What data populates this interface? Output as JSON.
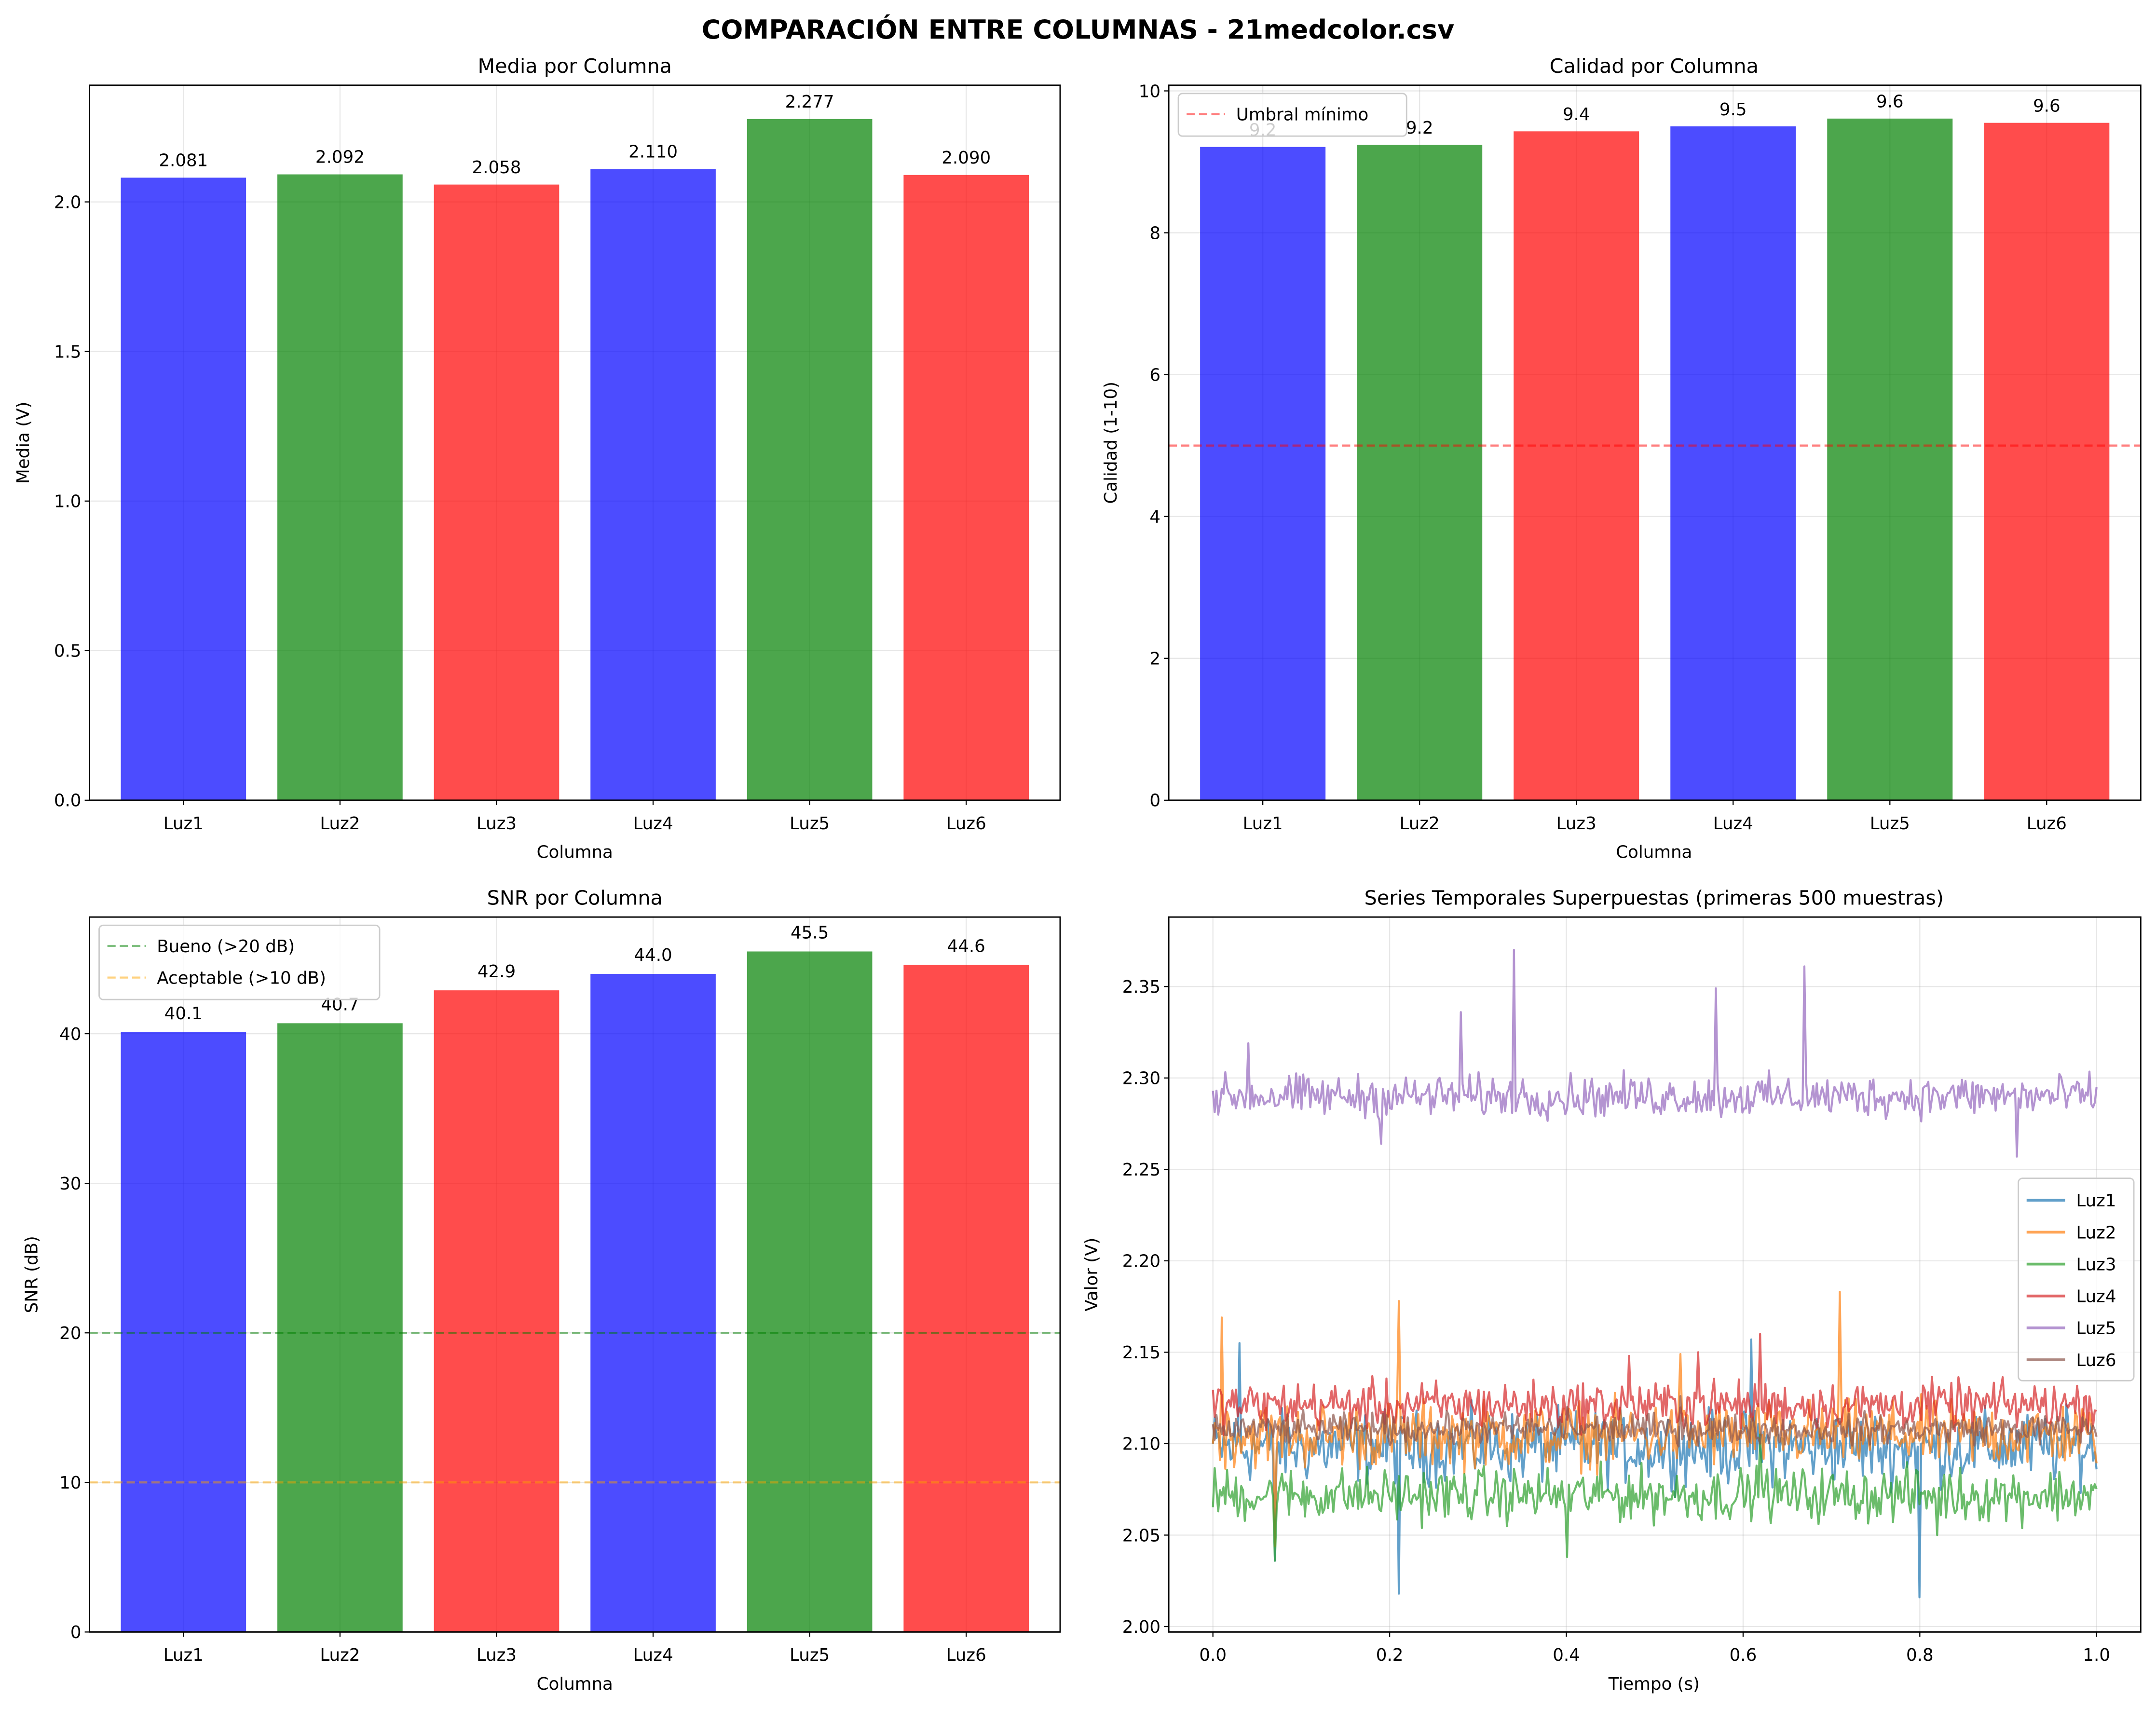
{
  "figure_title": "COMPARACIÓN ENTRE COLUMNAS - 21medcolor.csv",
  "colors": {
    "blue": "#0000ff",
    "green": "#008000",
    "red": "#ff0000",
    "threshold_red": "#ff0000",
    "good_green": "#008000",
    "ok_orange": "#ffa500"
  },
  "chart_data": [
    {
      "type": "bar",
      "title": "Media por Columna",
      "xlabel": "Columna",
      "ylabel": "Media (V)",
      "categories": [
        "Luz1",
        "Luz2",
        "Luz3",
        "Luz4",
        "Luz5",
        "Luz6"
      ],
      "values": [
        2.081,
        2.092,
        2.058,
        2.11,
        2.277,
        2.09
      ],
      "labels": [
        "2.081",
        "2.092",
        "2.058",
        "2.110",
        "2.277",
        "2.090"
      ],
      "bar_colors": [
        "blue",
        "green",
        "red",
        "blue",
        "green",
        "red"
      ],
      "ylim": [
        0,
        2.39
      ],
      "yticks": [
        0.0,
        0.5,
        1.0,
        1.5,
        2.0
      ],
      "ytick_labels": [
        "0.0",
        "0.5",
        "1.0",
        "1.5",
        "2.0"
      ],
      "grid": true
    },
    {
      "type": "bar",
      "title": "Calidad por Columna",
      "xlabel": "Columna",
      "ylabel": "Calidad (1-10)",
      "categories": [
        "Luz1",
        "Luz2",
        "Luz3",
        "Luz4",
        "Luz5",
        "Luz6"
      ],
      "values": [
        9.21,
        9.24,
        9.43,
        9.5,
        9.61,
        9.55
      ],
      "labels": [
        "9.2",
        "9.2",
        "9.4",
        "9.5",
        "9.6",
        "9.6"
      ],
      "bar_colors": [
        "blue",
        "green",
        "red",
        "blue",
        "green",
        "red"
      ],
      "ylim": [
        0,
        10.08
      ],
      "yticks": [
        0,
        2,
        4,
        6,
        8,
        10
      ],
      "ytick_labels": [
        "0",
        "2",
        "4",
        "6",
        "8",
        "10"
      ],
      "hlines": [
        {
          "y": 5,
          "color": "threshold_red",
          "label": "Umbral mínimo"
        }
      ],
      "legend": "top-left",
      "grid": true
    },
    {
      "type": "bar",
      "title": "SNR por Columna",
      "xlabel": "Columna",
      "ylabel": "SNR (dB)",
      "categories": [
        "Luz1",
        "Luz2",
        "Luz3",
        "Luz4",
        "Luz5",
        "Luz6"
      ],
      "values": [
        40.1,
        40.7,
        42.9,
        44.0,
        45.5,
        44.6
      ],
      "labels": [
        "40.1",
        "40.7",
        "42.9",
        "44.0",
        "45.5",
        "44.6"
      ],
      "bar_colors": [
        "blue",
        "green",
        "red",
        "blue",
        "green",
        "red"
      ],
      "ylim": [
        0,
        47.8
      ],
      "yticks": [
        0,
        10,
        20,
        30,
        40
      ],
      "ytick_labels": [
        "0",
        "10",
        "20",
        "30",
        "40"
      ],
      "hlines": [
        {
          "y": 20,
          "color": "good_green",
          "label": "Bueno (>20 dB)"
        },
        {
          "y": 10,
          "color": "ok_orange",
          "label": "Aceptable (>10 dB)"
        }
      ],
      "legend": "top-left",
      "grid": true
    },
    {
      "type": "line",
      "title": "Series Temporales Superpuestas (primeras 500 muestras)",
      "xlabel": "Tiempo (s)",
      "ylabel": "Valor (V)",
      "xlim": [
        -0.05,
        1.05
      ],
      "ylim": [
        1.997,
        2.388
      ],
      "xticks": [
        0.0,
        0.2,
        0.4,
        0.6,
        0.8,
        1.0
      ],
      "xtick_labels": [
        "0.0",
        "0.2",
        "0.4",
        "0.6",
        "0.8",
        "1.0"
      ],
      "yticks": [
        2.0,
        2.05,
        2.1,
        2.15,
        2.2,
        2.25,
        2.3,
        2.35
      ],
      "ytick_labels": [
        "2.00",
        "2.05",
        "2.10",
        "2.15",
        "2.20",
        "2.25",
        "2.30",
        "2.35"
      ],
      "legend": "center-right",
      "grid": true,
      "samples": 500,
      "series": [
        {
          "name": "Luz1",
          "color": "#1f77b4",
          "mean": 2.098,
          "noise": 0.012,
          "spikes": [
            [
              0.03,
              2.155
            ],
            [
              0.21,
              2.018
            ],
            [
              0.8,
              2.016
            ],
            [
              0.61,
              2.157
            ],
            [
              0.07,
              2.036
            ]
          ]
        },
        {
          "name": "Luz2",
          "color": "#ff7f0e",
          "mean": 2.105,
          "noise": 0.011,
          "spikes": [
            [
              0.01,
              2.169
            ],
            [
              0.21,
              2.178
            ],
            [
              0.71,
              2.183
            ],
            [
              0.53,
              2.149
            ],
            [
              0.07,
              2.044
            ]
          ]
        },
        {
          "name": "Luz3",
          "color": "#2ca02c",
          "mean": 2.072,
          "noise": 0.009,
          "spikes": [
            [
              0.07,
              2.036
            ],
            [
              0.4,
              2.038
            ],
            [
              0.62,
              2.105
            ],
            [
              0.82,
              2.05
            ]
          ]
        },
        {
          "name": "Luz4",
          "color": "#d62728",
          "mean": 2.121,
          "noise": 0.008,
          "spikes": [
            [
              0.62,
              2.16
            ],
            [
              0.47,
              2.148
            ],
            [
              0.55,
              2.15
            ],
            [
              0.17,
              2.13
            ]
          ]
        },
        {
          "name": "Luz5",
          "color": "#9467bd",
          "mean": 2.29,
          "noise": 0.007,
          "spikes": [
            [
              0.34,
              2.37
            ],
            [
              0.67,
              2.361
            ],
            [
              0.57,
              2.349
            ],
            [
              0.04,
              2.319
            ],
            [
              0.28,
              2.336
            ],
            [
              0.19,
              2.264
            ],
            [
              0.91,
              2.257
            ]
          ]
        },
        {
          "name": "Luz6",
          "color": "#8c564b",
          "mean": 2.108,
          "noise": 0.005,
          "spikes": [
            [
              0.53,
              2.126
            ],
            [
              0.4,
              2.12
            ]
          ]
        }
      ]
    }
  ]
}
